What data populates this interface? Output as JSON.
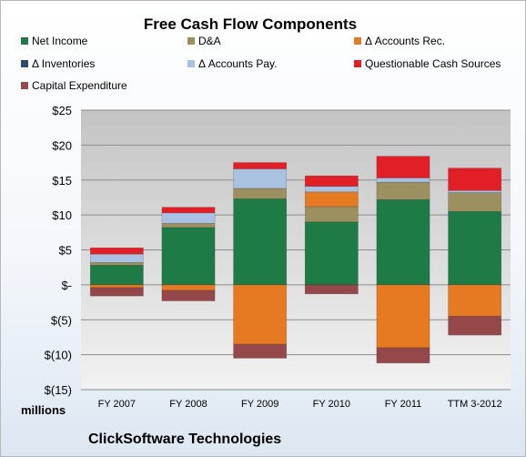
{
  "chart_data": {
    "type": "bar",
    "stacked": true,
    "title": "Free Cash Flow Components",
    "unit_label": "millions",
    "footer": "ClickSoftware Technologies",
    "ylim": [
      -15,
      25
    ],
    "y_ticks": [
      {
        "value": 25,
        "label": "$25"
      },
      {
        "value": 20,
        "label": "$20"
      },
      {
        "value": 15,
        "label": "$15"
      },
      {
        "value": 10,
        "label": "$10"
      },
      {
        "value": 5,
        "label": "$5"
      },
      {
        "value": 0,
        "label": "$-"
      },
      {
        "value": -5,
        "label": "$(5)"
      },
      {
        "value": -10,
        "label": "$(10)"
      },
      {
        "value": -15,
        "label": "$(15)"
      }
    ],
    "grid": true,
    "legend_position": "top",
    "categories": [
      "FY 2007",
      "FY 2008",
      "FY 2009",
      "FY 2010",
      "FY 2011",
      "TTM 3-2012"
    ],
    "series": [
      {
        "name": "Net Income",
        "color": "#1e7b45",
        "values": [
          2.8,
          8.2,
          12.3,
          9.0,
          12.2,
          10.5
        ]
      },
      {
        "name": "D&A",
        "color": "#9c9060",
        "values": [
          0.4,
          0.6,
          1.5,
          2.2,
          2.5,
          2.7
        ]
      },
      {
        "name": "Δ Accounts Rec.",
        "color": "#e67a22",
        "values": [
          -0.4,
          -0.8,
          -8.5,
          2.1,
          -9.0,
          -4.5
        ]
      },
      {
        "name": "Δ Inventories",
        "color": "#2e4a6b",
        "values": [
          0,
          0,
          0,
          0,
          0,
          0
        ]
      },
      {
        "name": "Δ Accounts Pay.",
        "color": "#a9c2e2",
        "values": [
          1.2,
          1.5,
          2.8,
          0.8,
          0.6,
          0.3
        ]
      },
      {
        "name": "Questionable Cash Sources",
        "color": "#e21f26",
        "values": [
          0.9,
          0.8,
          0.9,
          1.5,
          3.1,
          3.2
        ]
      },
      {
        "name": "Capital Expenditure",
        "color": "#94484a",
        "values": [
          -1.2,
          -1.5,
          -2.0,
          -1.3,
          -2.2,
          -2.7
        ]
      }
    ]
  }
}
